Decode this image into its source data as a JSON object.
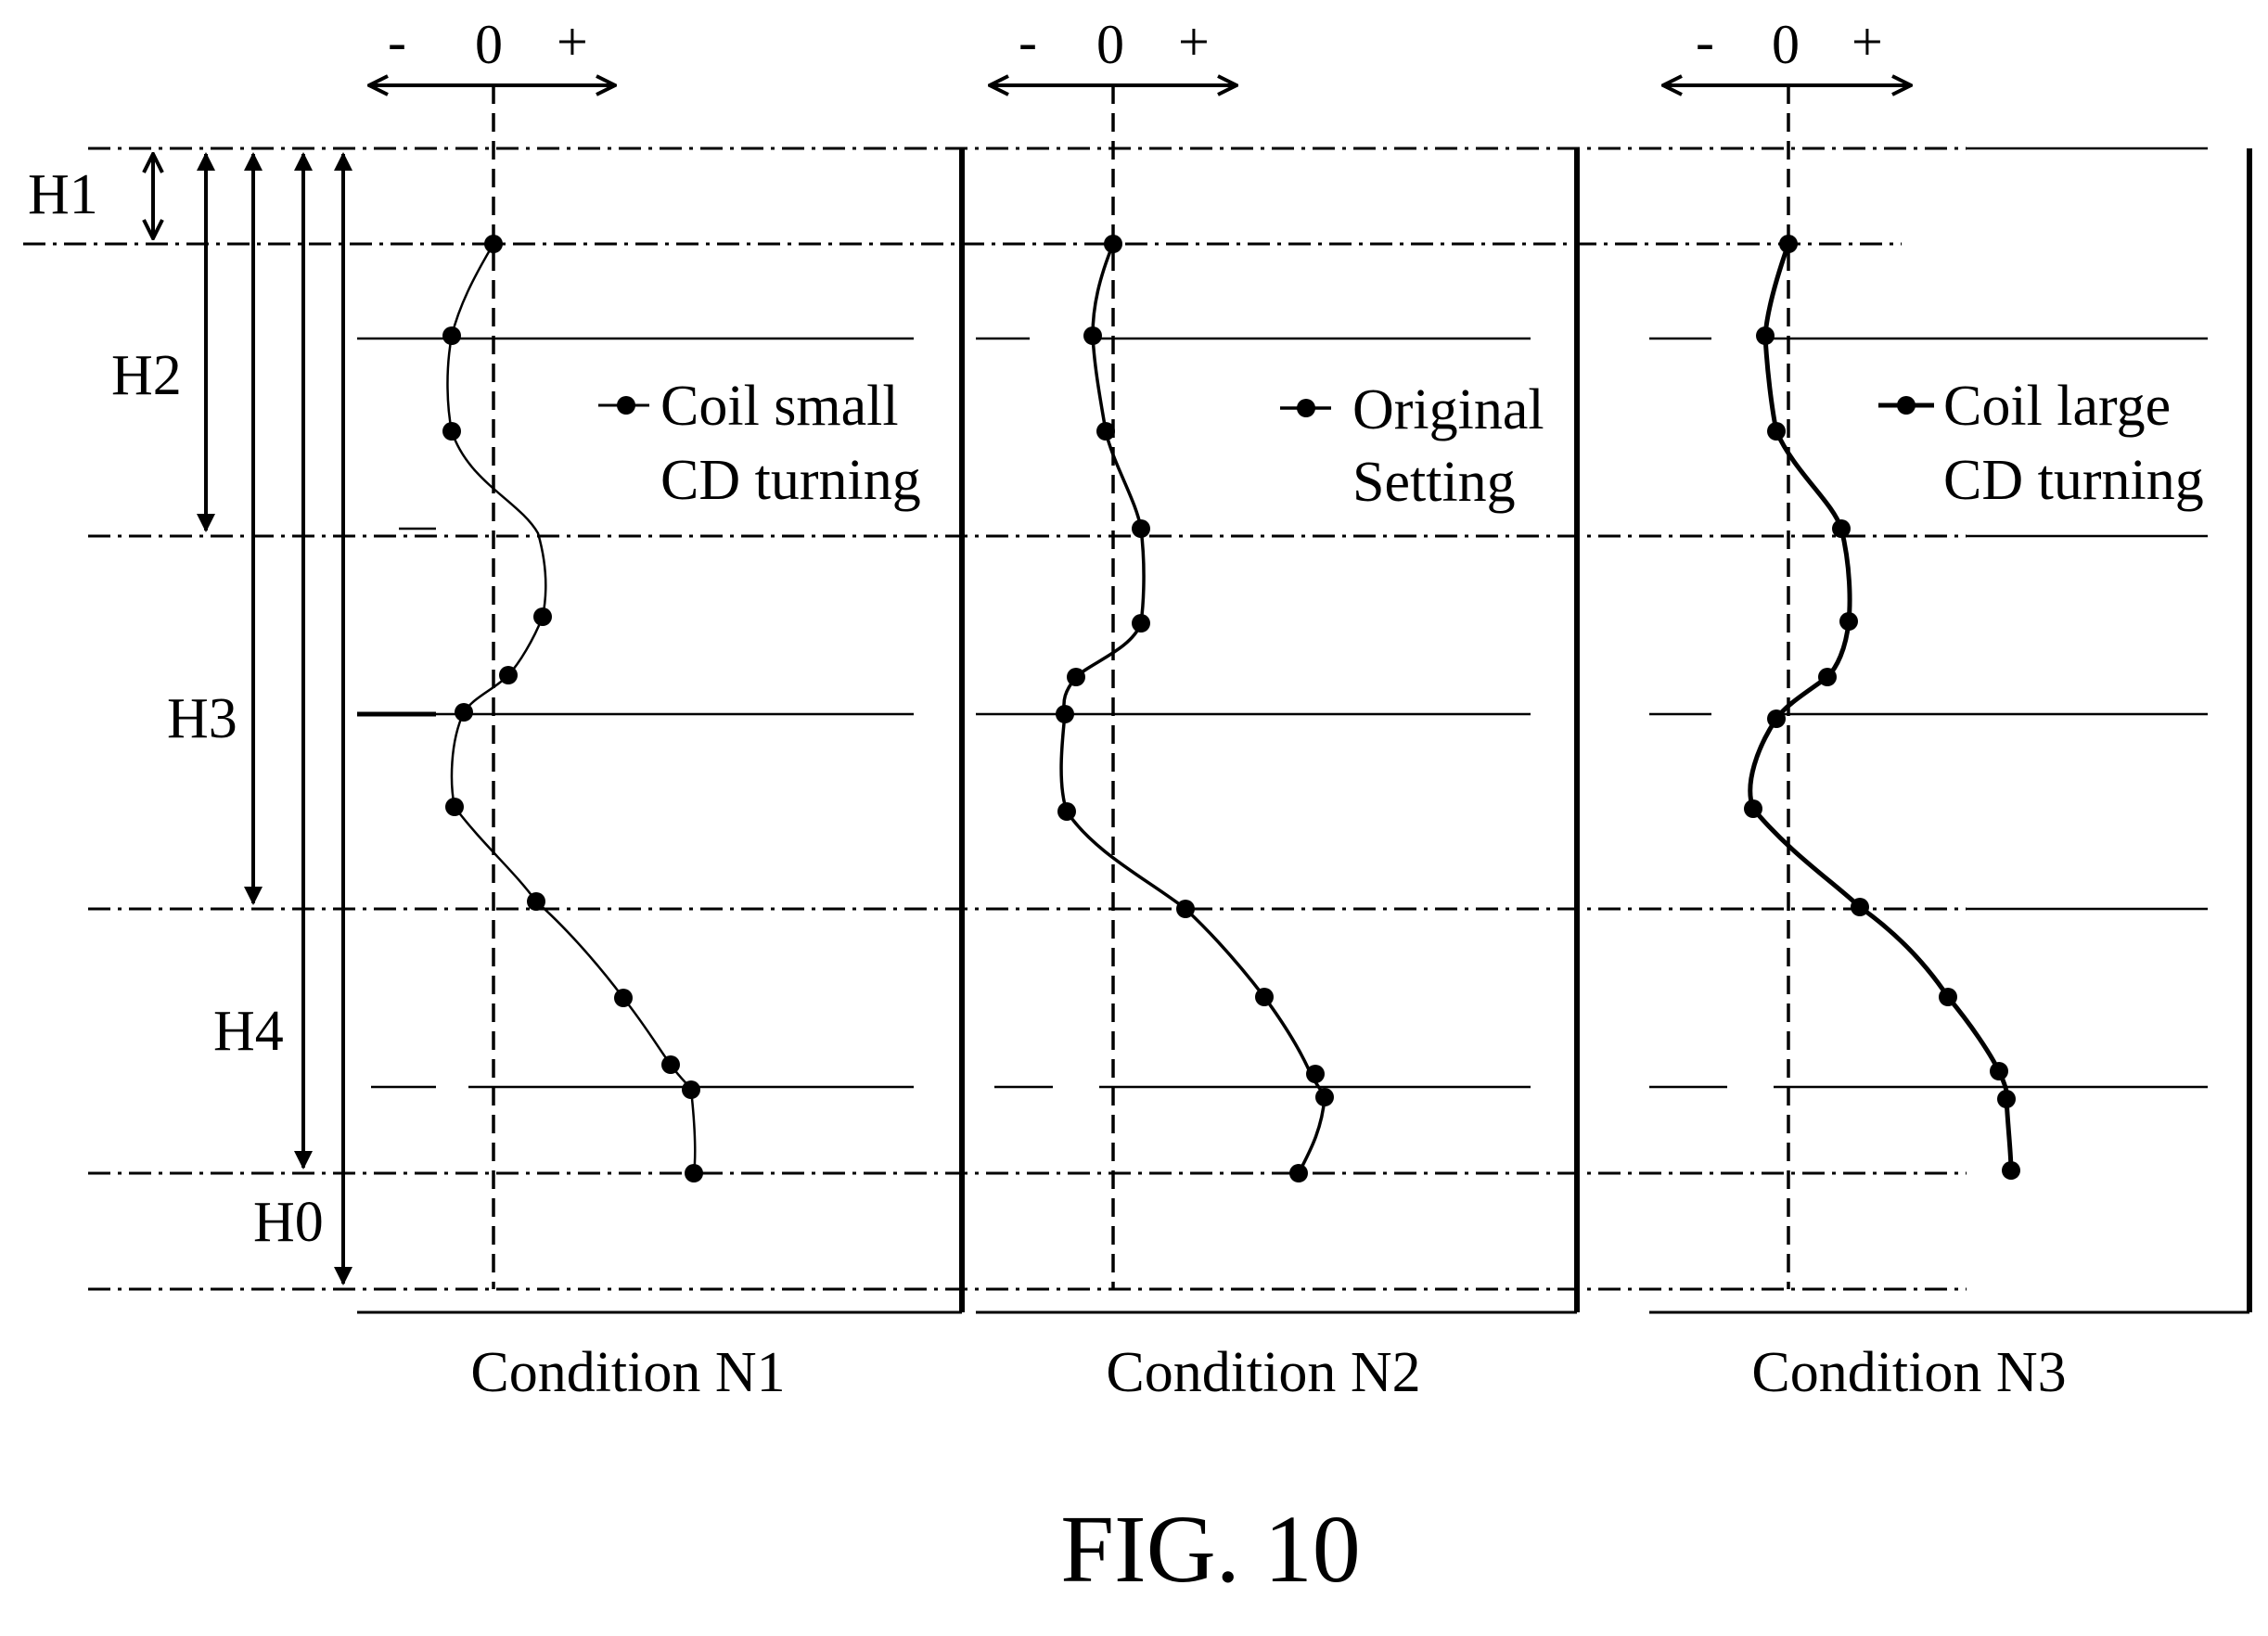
{
  "figure": {
    "caption": "FIG. 10",
    "ink_color": "#000000",
    "background_color": "#ffffff"
  },
  "height_labels": [
    "H1",
    "H2",
    "H3",
    "H4",
    "H0"
  ],
  "axis_symbols": {
    "minus": "-",
    "zero": "0",
    "plus": "+"
  },
  "panels": [
    {
      "condition_label": "Condition N1",
      "legend_line1": "Coil small",
      "legend_line2": "CD turning",
      "deviation_profile": [
        0,
        -0.5,
        -0.5,
        0.6,
        0.2,
        -0.3,
        -0.5,
        0.5,
        1.5,
        2.1,
        2.3,
        2.4
      ]
    },
    {
      "condition_label": "Condition N2",
      "legend_line1": "Original",
      "legend_line2": "Setting",
      "deviation_profile": [
        0,
        -0.2,
        -0.1,
        0.3,
        0.3,
        -0.4,
        -0.6,
        -0.5,
        0.8,
        1.7,
        2.3,
        2.5,
        2.1
      ]
    },
    {
      "condition_label": "Condition N3",
      "legend_line1": "Coil large",
      "legend_line2": "CD turning",
      "deviation_profile": [
        0,
        -0.3,
        -0.1,
        0.6,
        0.7,
        0.5,
        -0.1,
        -0.4,
        0.9,
        1.8,
        2.3,
        2.5,
        2.5
      ]
    }
  ]
}
